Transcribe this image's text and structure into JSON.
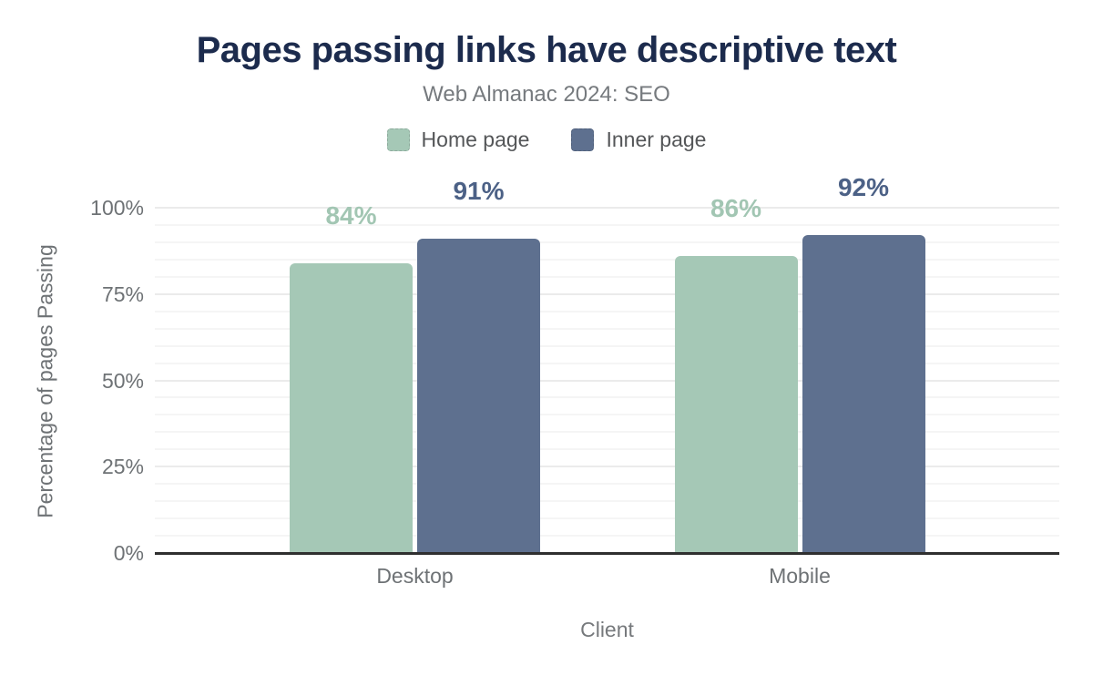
{
  "title": "Pages passing links have descriptive text",
  "subtitle": "Web Almanac 2024: SEO",
  "chart_data": {
    "type": "bar",
    "title": "Pages passing links have descriptive text",
    "subtitle": "Web Almanac 2024: SEO",
    "categories": [
      "Desktop",
      "Mobile"
    ],
    "series": [
      {
        "name": "Home page",
        "color": "#a5c8b6",
        "label_color": "#a2c6b3",
        "values": [
          84,
          86
        ]
      },
      {
        "name": "Inner page",
        "color": "#5e708f",
        "label_color": "#4c6186",
        "values": [
          91,
          92
        ]
      }
    ],
    "xlabel": "Client",
    "ylabel": "Percentage of pages Passing",
    "ylim": [
      0,
      100
    ],
    "yticks": [
      0,
      25,
      50,
      75,
      100
    ],
    "minor_grid_step": 5,
    "unit": "%",
    "grid": true,
    "legend_position": "top",
    "data_labels": [
      "84%",
      "91%",
      "86%",
      "92%"
    ]
  },
  "colors": {
    "title": "#1c2b4d",
    "subtitle": "#767a7e",
    "axis_text": "#6e7275",
    "axis_line": "#2f2f2f",
    "major_grid": "#ebebeb",
    "minor_grid": "#f5f5f5"
  }
}
